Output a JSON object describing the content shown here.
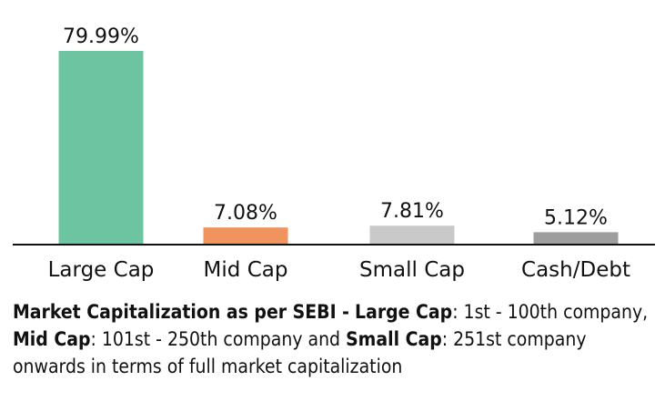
{
  "chart_data": {
    "type": "bar",
    "categories": [
      "Large Cap",
      "Mid Cap",
      "Small Cap",
      "Cash/Debt"
    ],
    "values": [
      79.99,
      7.08,
      7.81,
      5.12
    ],
    "value_labels": [
      "79.99%",
      "7.08%",
      "7.81%",
      "5.12%"
    ],
    "colors": [
      "#6cc4a1",
      "#f0935f",
      "#c9c9c9",
      "#9e9e9e"
    ],
    "ylim": [
      0,
      80
    ],
    "grid": false,
    "legend": "none"
  },
  "footnote": {
    "lead_bold": "Market Capitalization as per SEBI -",
    "large_cap_label": "Large Cap",
    "large_cap_text": ": 1st - 100th company,",
    "mid_cap_label": "Mid Cap",
    "mid_cap_text": ": 101st - 250th company and",
    "small_cap_label": "Small Cap",
    "small_cap_text": ": 251st company onwards in terms of full market capitalization"
  }
}
